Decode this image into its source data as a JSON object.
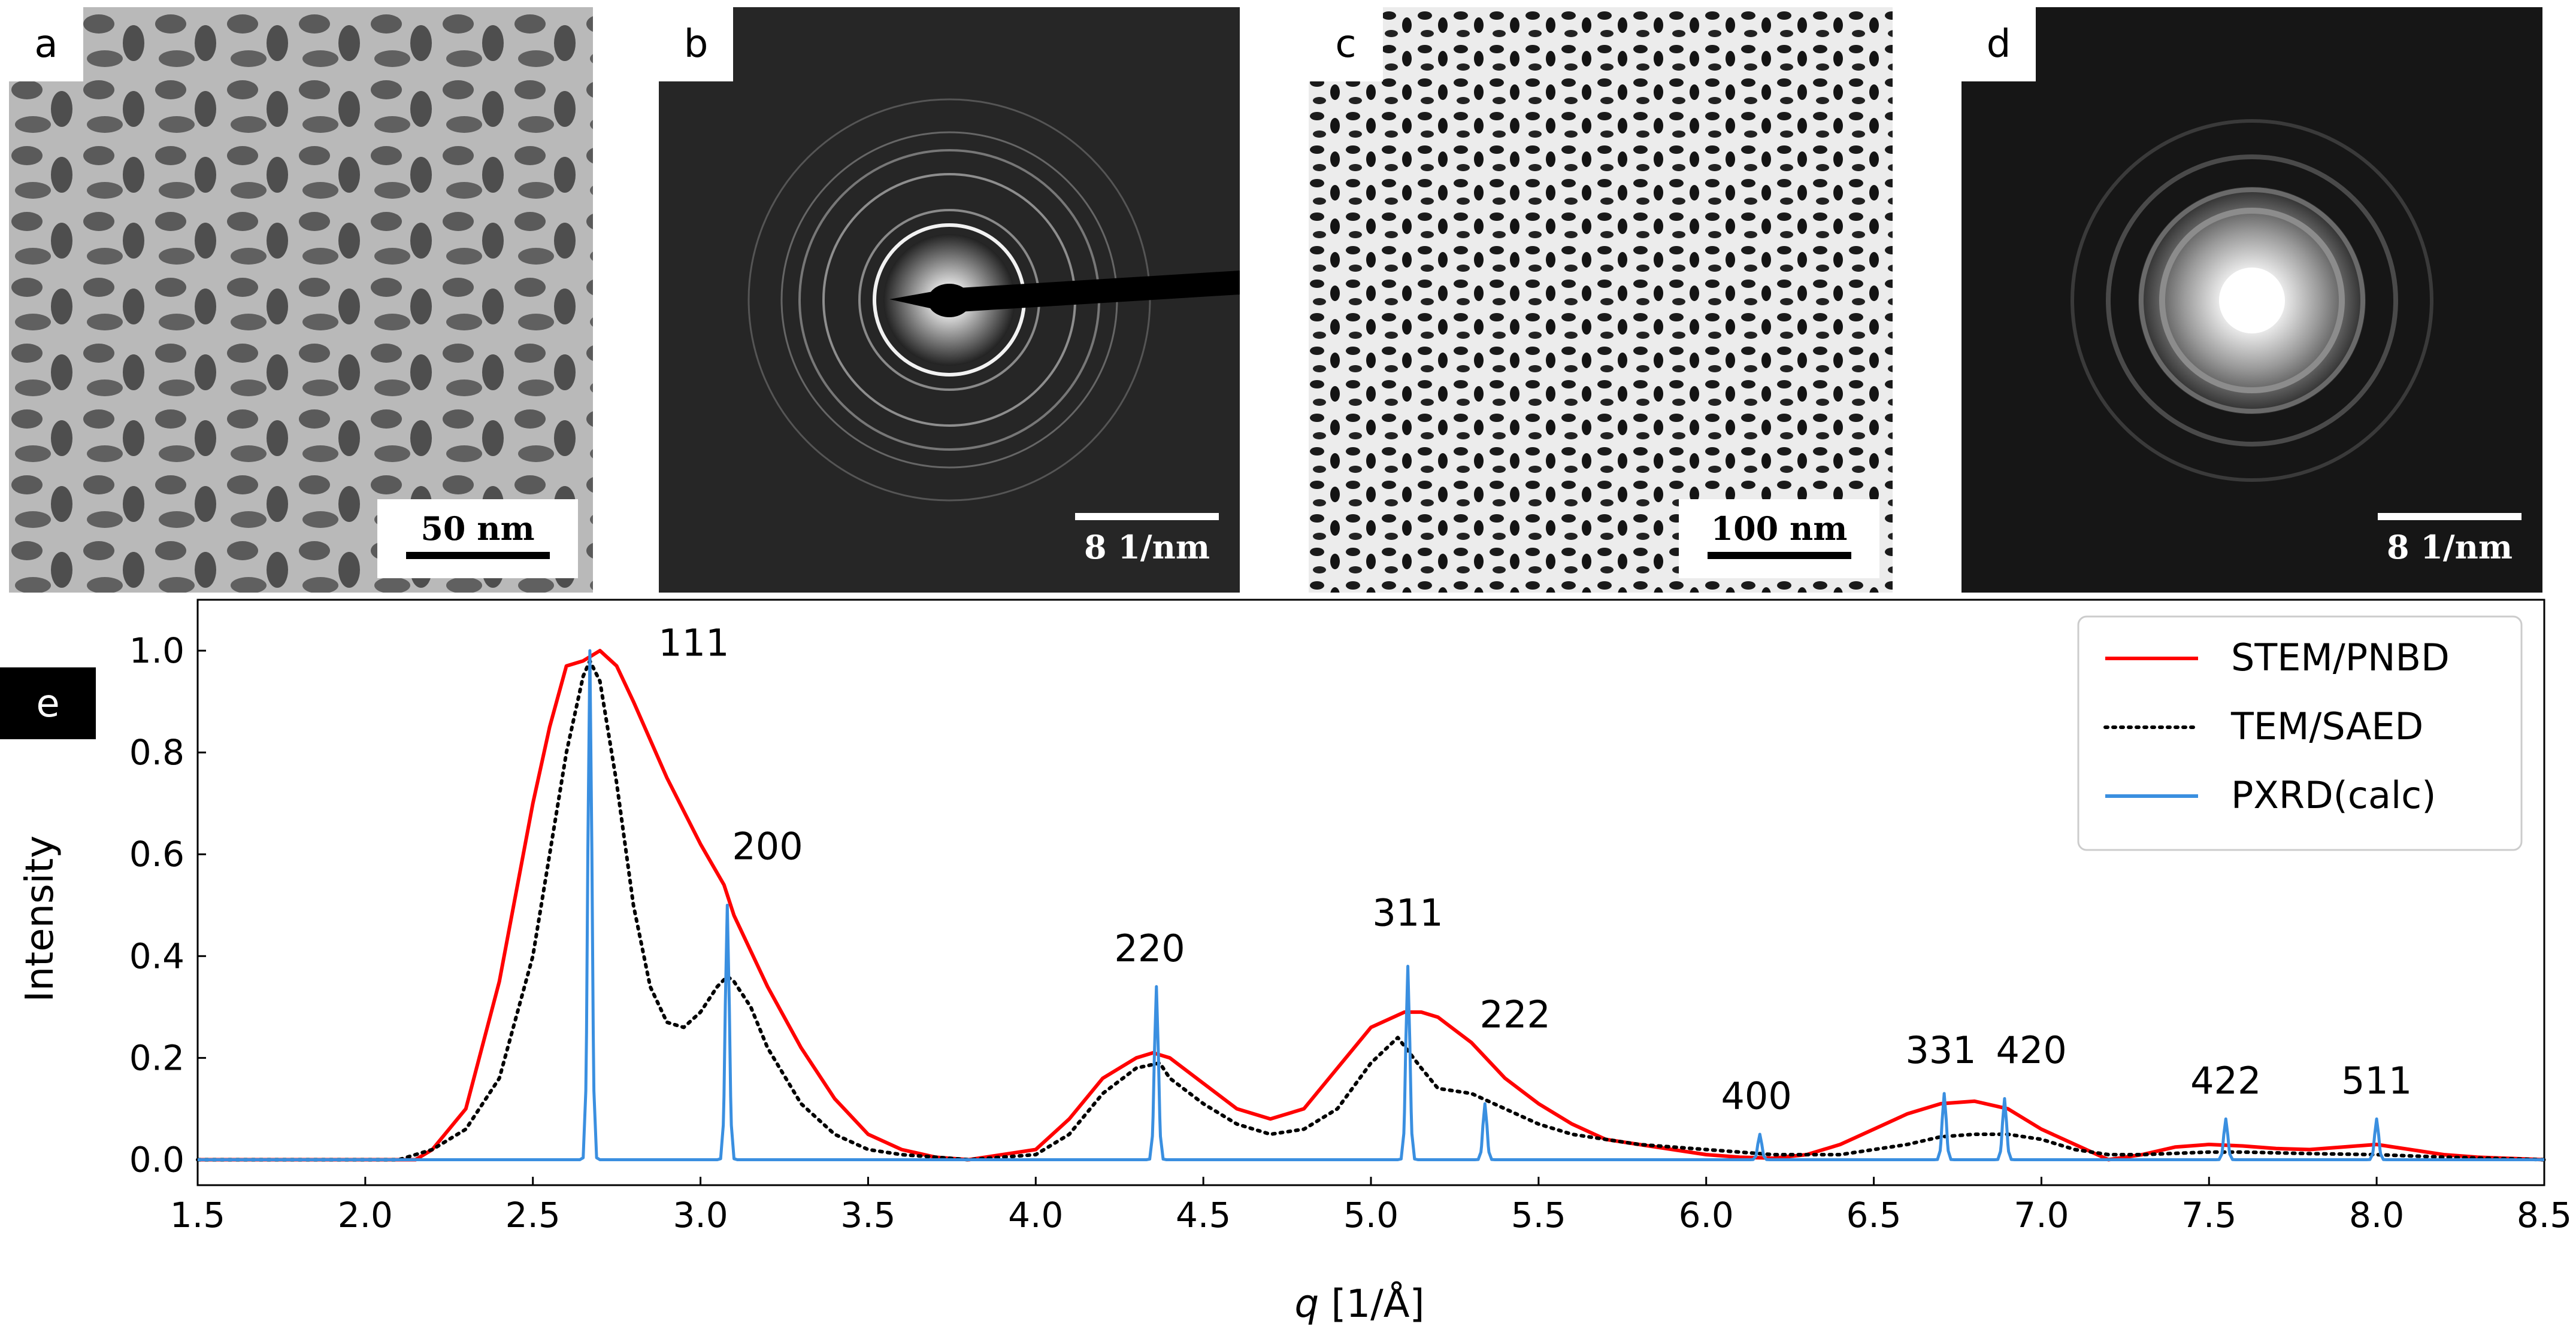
{
  "panels": [
    {
      "tag": "a",
      "scale_label": "50 nm",
      "kind": "TEM bright-field micrograph"
    },
    {
      "tag": "b",
      "scale_label": "8 1/nm",
      "kind": "Selected-area electron diffraction rings"
    },
    {
      "tag": "c",
      "scale_label": "100 nm",
      "kind": "STEM micrograph"
    },
    {
      "tag": "d",
      "scale_label": "8 1/nm",
      "kind": "Nanobeam diffraction rings"
    }
  ],
  "chart_tag": "e",
  "chart_data": {
    "type": "line",
    "xlabel_var": "q",
    "xlabel_unit": " [1/Å]",
    "ylabel": "Intensity",
    "xlim": [
      1.5,
      8.5
    ],
    "ylim": [
      -0.05,
      1.1
    ],
    "xticks": [
      "1.5",
      "2.0",
      "2.5",
      "3.0",
      "3.5",
      "4.0",
      "4.5",
      "5.0",
      "5.5",
      "6.0",
      "6.5",
      "7.0",
      "7.5",
      "8.0",
      "8.5"
    ],
    "yticks": [
      "0.0",
      "0.2",
      "0.4",
      "0.6",
      "0.8",
      "1.0"
    ],
    "legend_position": "top-right",
    "series": [
      {
        "name": "STEM/PNBD",
        "color": "#ff0000",
        "style": "solid",
        "x": [
          1.5,
          2.0,
          2.15,
          2.2,
          2.3,
          2.4,
          2.5,
          2.55,
          2.6,
          2.65,
          2.7,
          2.75,
          2.8,
          2.9,
          3.0,
          3.07,
          3.1,
          3.2,
          3.3,
          3.4,
          3.5,
          3.6,
          3.7,
          3.8,
          4.0,
          4.1,
          4.2,
          4.3,
          4.35,
          4.4,
          4.5,
          4.6,
          4.7,
          4.8,
          4.9,
          5.0,
          5.1,
          5.15,
          5.2,
          5.3,
          5.4,
          5.5,
          5.6,
          5.7,
          5.8,
          5.9,
          6.0,
          6.1,
          6.2,
          6.3,
          6.4,
          6.5,
          6.6,
          6.7,
          6.8,
          6.9,
          7.0,
          7.1,
          7.2,
          7.3,
          7.4,
          7.5,
          7.6,
          7.7,
          7.8,
          7.9,
          8.0,
          8.1,
          8.2,
          8.3,
          8.5
        ],
        "y": [
          0.0,
          0.0,
          0.0,
          0.02,
          0.1,
          0.35,
          0.7,
          0.85,
          0.97,
          0.98,
          1.0,
          0.97,
          0.9,
          0.75,
          0.62,
          0.54,
          0.48,
          0.34,
          0.22,
          0.12,
          0.05,
          0.02,
          0.005,
          0.0,
          0.02,
          0.08,
          0.16,
          0.2,
          0.21,
          0.2,
          0.15,
          0.1,
          0.08,
          0.1,
          0.18,
          0.26,
          0.29,
          0.29,
          0.28,
          0.23,
          0.16,
          0.11,
          0.07,
          0.04,
          0.03,
          0.02,
          0.01,
          0.005,
          0.003,
          0.01,
          0.03,
          0.06,
          0.09,
          0.11,
          0.115,
          0.1,
          0.06,
          0.03,
          0.0,
          0.01,
          0.025,
          0.03,
          0.027,
          0.022,
          0.02,
          0.025,
          0.03,
          0.02,
          0.01,
          0.005,
          0.0
        ]
      },
      {
        "name": "TEM/SAED",
        "color": "#000000",
        "style": "dotted",
        "x": [
          1.5,
          2.1,
          2.2,
          2.3,
          2.4,
          2.5,
          2.55,
          2.6,
          2.65,
          2.67,
          2.7,
          2.75,
          2.8,
          2.85,
          2.9,
          2.95,
          3.0,
          3.05,
          3.08,
          3.1,
          3.15,
          3.2,
          3.3,
          3.4,
          3.5,
          3.6,
          3.7,
          3.8,
          4.0,
          4.1,
          4.2,
          4.3,
          4.37,
          4.4,
          4.5,
          4.6,
          4.7,
          4.8,
          4.9,
          5.0,
          5.08,
          5.15,
          5.2,
          5.3,
          5.4,
          5.5,
          5.6,
          5.8,
          6.0,
          6.2,
          6.4,
          6.5,
          6.6,
          6.7,
          6.8,
          6.9,
          7.0,
          7.1,
          7.2,
          7.3,
          7.5,
          7.6,
          7.8,
          8.0,
          8.2,
          8.5
        ],
        "y": [
          0.0,
          0.0,
          0.02,
          0.06,
          0.16,
          0.4,
          0.6,
          0.8,
          0.95,
          0.98,
          0.94,
          0.74,
          0.5,
          0.34,
          0.27,
          0.26,
          0.29,
          0.34,
          0.36,
          0.35,
          0.3,
          0.22,
          0.11,
          0.05,
          0.02,
          0.01,
          0.005,
          0.0,
          0.01,
          0.05,
          0.13,
          0.18,
          0.19,
          0.16,
          0.11,
          0.07,
          0.05,
          0.06,
          0.1,
          0.19,
          0.24,
          0.18,
          0.14,
          0.13,
          0.1,
          0.07,
          0.05,
          0.03,
          0.02,
          0.01,
          0.01,
          0.02,
          0.03,
          0.045,
          0.05,
          0.05,
          0.04,
          0.02,
          0.01,
          0.01,
          0.015,
          0.015,
          0.012,
          0.01,
          0.005,
          0.0
        ]
      },
      {
        "name": "PXRD(calc)",
        "color": "#3a8fe0",
        "style": "solid",
        "peaks": [
          {
            "hkl": "111",
            "q": 2.67,
            "y": 1.0
          },
          {
            "hkl": "200",
            "q": 3.08,
            "y": 0.5
          },
          {
            "hkl": "220",
            "q": 4.36,
            "y": 0.34
          },
          {
            "hkl": "311",
            "q": 5.11,
            "y": 0.38
          },
          {
            "hkl": "222",
            "q": 5.34,
            "y": 0.11
          },
          {
            "hkl": "400",
            "q": 6.16,
            "y": 0.05
          },
          {
            "hkl": "331",
            "q": 6.71,
            "y": 0.13
          },
          {
            "hkl": "420",
            "q": 6.89,
            "y": 0.12
          },
          {
            "hkl": "422",
            "q": 7.55,
            "y": 0.08
          },
          {
            "hkl": "511",
            "q": 8.0,
            "y": 0.08
          }
        ]
      }
    ],
    "annotations": [
      {
        "text": "111",
        "x": 2.98,
        "y": 0.99
      },
      {
        "text": "200",
        "x": 3.2,
        "y": 0.59
      },
      {
        "text": "220",
        "x": 4.34,
        "y": 0.39
      },
      {
        "text": "311",
        "x": 5.11,
        "y": 0.46
      },
      {
        "text": "222",
        "x": 5.43,
        "y": 0.26
      },
      {
        "text": "400",
        "x": 6.15,
        "y": 0.1
      },
      {
        "text": "331",
        "x": 6.7,
        "y": 0.19
      },
      {
        "text": "420",
        "x": 6.97,
        "y": 0.19
      },
      {
        "text": "422",
        "x": 7.55,
        "y": 0.13
      },
      {
        "text": "511",
        "x": 8.0,
        "y": 0.13
      }
    ]
  }
}
